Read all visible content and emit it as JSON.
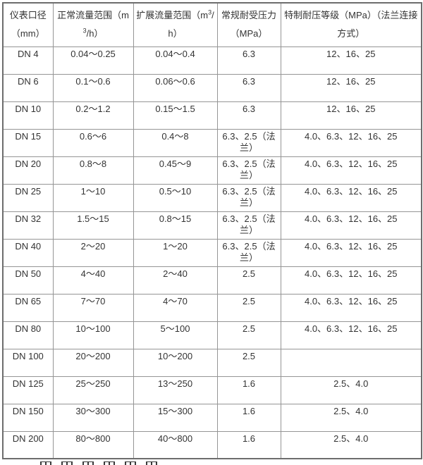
{
  "colors": {
    "background": "#ffffff",
    "border_outer": "#6d6d6d",
    "border_inner": "#959595",
    "text": "#333333"
  },
  "table": {
    "headers": [
      {
        "text": "仪表口径（mm）"
      },
      {
        "pre": "正常流量范围（m",
        "sup": "3",
        "post": "/h）"
      },
      {
        "pre": "扩展流量范围（m",
        "sup": "3",
        "post": "/h）"
      },
      {
        "text": "常规耐受压力（MPa）"
      },
      {
        "text": "特制耐压等级（MPa）（法兰连接方式）"
      }
    ],
    "rows": [
      [
        "DN 4",
        "0.04～0.25",
        "0.04～0.4",
        "6.3",
        "12、16、25"
      ],
      [
        "DN 6",
        "0.1～0.6",
        "0.06～0.6",
        "6.3",
        "12、16、25"
      ],
      [
        "DN 10",
        "0.2～1.2",
        "0.15～1.5",
        "6.3",
        "12、16、25"
      ],
      [
        "DN 15",
        "0.6～6",
        "0.4～8",
        "6.3、2.5（法兰）",
        "4.0、6.3、12、16、25"
      ],
      [
        "DN 20",
        "0.8～8",
        "0.45～9",
        "6.3、2.5（法兰）",
        "4.0、6.3、12、16、25"
      ],
      [
        "DN 25",
        "1～10",
        "0.5～10",
        "6.3、2.5（法兰）",
        "4.0、6.3、12、16、25"
      ],
      [
        "DN 32",
        "1.5～15",
        "0.8～15",
        "6.3、2.5（法兰）",
        "4.0、6.3、12、16、25"
      ],
      [
        "DN 40",
        "2～20",
        "1～20",
        "6.3、2.5（法兰）",
        "4.0、6.3、12、16、25"
      ],
      [
        "DN 50",
        "4～40",
        "2～40",
        "2.5",
        "4.0、6.3、12、16、25"
      ],
      [
        "DN 65",
        "7～70",
        "4～70",
        "2.5",
        "4.0、6.3、12、16、25"
      ],
      [
        "DN 80",
        "10～100",
        "5～100",
        "2.5",
        "4.0、6.3、12、16、25"
      ],
      [
        "DN 100",
        "20～200",
        "10～200",
        "2.5",
        ""
      ],
      [
        "DN 125",
        "25～250",
        "13～250",
        "1.6",
        "2.5、4.0"
      ],
      [
        "DN 150",
        "30～300",
        "15～300",
        "1.6",
        "2.5、4.0"
      ],
      [
        "DN 200",
        "80～800",
        "40～800",
        "1.6",
        "2.5、4.0"
      ]
    ]
  }
}
